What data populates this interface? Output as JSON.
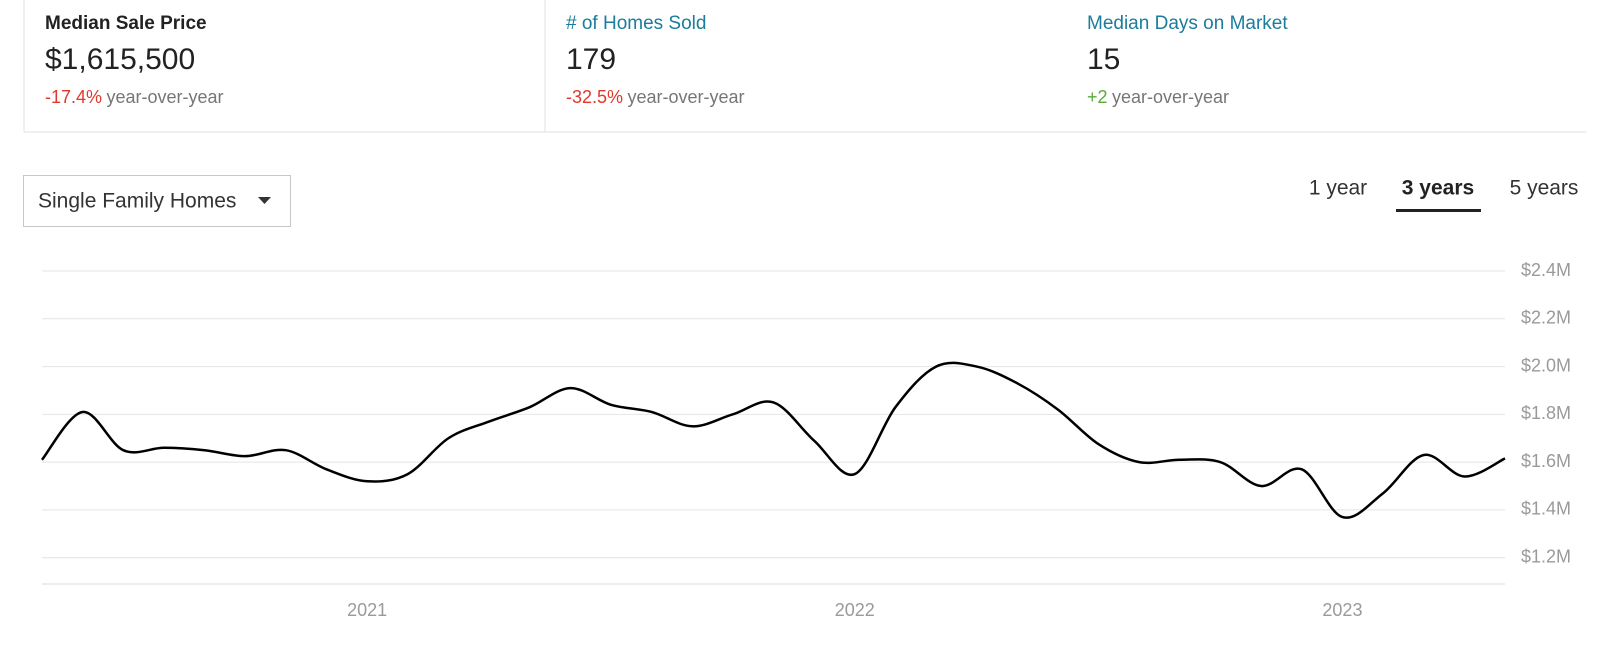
{
  "stats": [
    {
      "title": "Median Sale Price",
      "value": "$1,615,500",
      "change": "-17.4%",
      "change_label": "year-over-year"
    },
    {
      "title": "# of Homes Sold",
      "value": "179",
      "change": "-32.5%",
      "change_label": "year-over-year"
    },
    {
      "title": "Median Days on Market",
      "value": "15",
      "change": "+2",
      "change_label": "year-over-year"
    }
  ],
  "filter": {
    "label": "Single Family Homes"
  },
  "tabs": [
    "1 year",
    "3 years",
    "5 years"
  ],
  "chart_data": {
    "type": "line",
    "categories": [
      null,
      null,
      null,
      null,
      null,
      null,
      null,
      null,
      "2021",
      null,
      null,
      null,
      null,
      null,
      null,
      null,
      null,
      null,
      null,
      null,
      "2022",
      null,
      null,
      null,
      null,
      null,
      null,
      null,
      null,
      null,
      null,
      null,
      "2023",
      null,
      null,
      null,
      null
    ],
    "series": [
      {
        "name": "Median Sale Price",
        "color": "#000000",
        "values": [
          1610000,
          1810000,
          1650000,
          1660000,
          1650000,
          1625000,
          1650000,
          1570000,
          1520000,
          1550000,
          1700000,
          1770000,
          1830000,
          1910000,
          1840000,
          1810000,
          1750000,
          1800000,
          1850000,
          1690000,
          1550000,
          1830000,
          2000000,
          2000000,
          1930000,
          1820000,
          1675000,
          1600000,
          1610000,
          1600000,
          1500000,
          1570000,
          1370000,
          1470000,
          1630000,
          1540000,
          1615500
        ]
      }
    ],
    "ylim": [
      1090000,
      2400000
    ],
    "yticks": [
      {
        "value": 1200000,
        "label": "$1.2M"
      },
      {
        "value": 1400000,
        "label": "$1.4M"
      },
      {
        "value": 1600000,
        "label": "$1.6M"
      },
      {
        "value": 1800000,
        "label": "$1.8M"
      },
      {
        "value": 2000000,
        "label": "$2.0M"
      },
      {
        "value": 2200000,
        "label": "$2.2M"
      },
      {
        "value": 2400000,
        "label": "$2.4M"
      }
    ],
    "grid": true
  }
}
